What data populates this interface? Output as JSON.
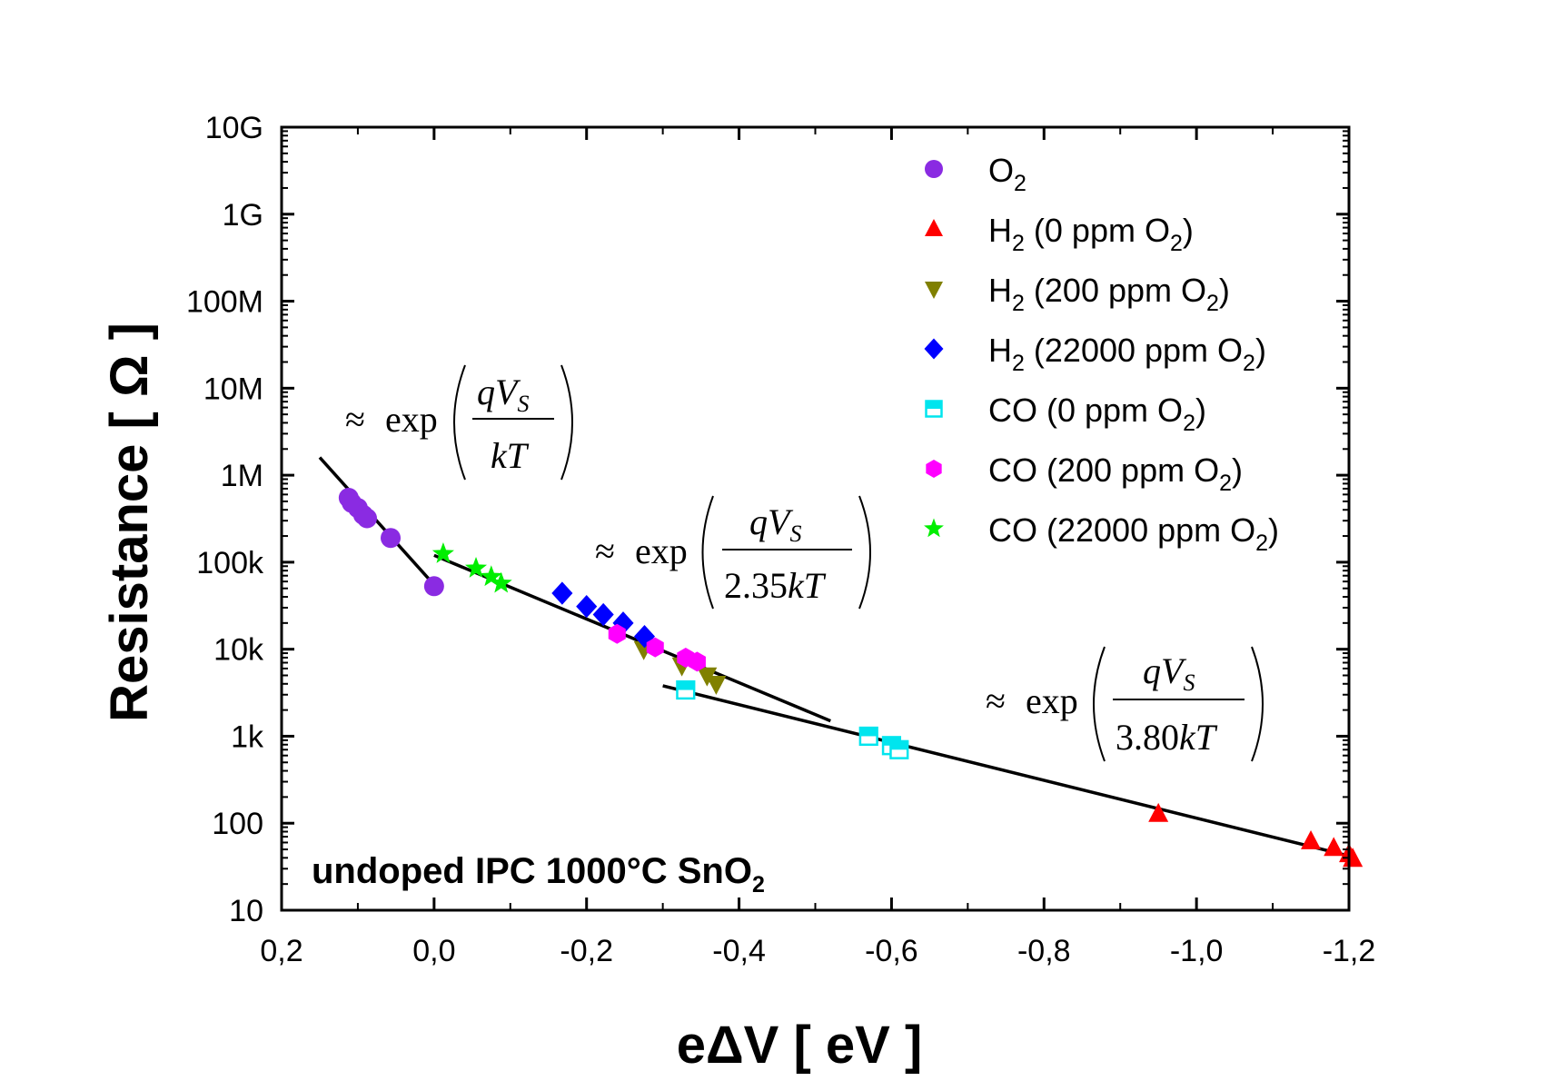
{
  "chart_data": {
    "type": "scatter",
    "title": "",
    "xlabel": "eΔV [ eV ]",
    "ylabel": "Resistance [ Ω ]",
    "x_reversed": true,
    "xlim": [
      0.2,
      -1.2
    ],
    "ylim": [
      10,
      10000000000
    ],
    "y_scale": "log",
    "x_ticks": [
      0.2,
      0.0,
      -0.2,
      -0.4,
      -0.6,
      -0.8,
      -1.0,
      -1.2
    ],
    "x_tick_labels": [
      "0,2",
      "0,0",
      "-0,2",
      "-0,4",
      "-0,6",
      "-0,8",
      "-1,0",
      "-1,2"
    ],
    "y_ticks": [
      10,
      100,
      1000,
      10000,
      100000,
      1000000,
      10000000,
      100000000,
      1000000000,
      10000000000
    ],
    "y_tick_labels": [
      "10",
      "100",
      "1k",
      "10k",
      "100k",
      "1M",
      "10M",
      "100M",
      "1G",
      "10G"
    ],
    "legend_position": "top-right",
    "series": [
      {
        "name_main": "O",
        "name_sub": "2",
        "name_rest": "",
        "name_sub2": "",
        "name_end": "",
        "marker": "circle",
        "color": "#8a2be2",
        "points": [
          [
            0.112,
            550000
          ],
          [
            0.108,
            480000
          ],
          [
            0.1,
            420000
          ],
          [
            0.093,
            350000
          ],
          [
            0.088,
            320000
          ],
          [
            0.057,
            190000
          ],
          [
            0.0,
            53000
          ]
        ]
      },
      {
        "name_main": "H",
        "name_sub": "2",
        "name_rest": " (0 ppm O",
        "name_sub2": "2",
        "name_end": ")",
        "marker": "triangle-up",
        "color": "#ff0000",
        "points": [
          [
            -0.95,
            128
          ],
          [
            -1.15,
            62
          ],
          [
            -1.18,
            52
          ],
          [
            -1.2,
            44
          ],
          [
            -1.205,
            39
          ]
        ]
      },
      {
        "name_main": "H",
        "name_sub": "2",
        "name_rest": " (200 ppm O",
        "name_sub2": "2",
        "name_end": ")",
        "marker": "triangle-down",
        "color": "#808000",
        "points": [
          [
            -0.275,
            10000
          ],
          [
            -0.325,
            6500
          ],
          [
            -0.358,
            5000
          ],
          [
            -0.37,
            4000
          ]
        ]
      },
      {
        "name_main": "H",
        "name_sub": "2",
        "name_rest": " (22000 ppm O",
        "name_sub2": "2",
        "name_end": ")",
        "marker": "diamond",
        "color": "#0000ff",
        "points": [
          [
            -0.168,
            44000
          ],
          [
            -0.2,
            31000
          ],
          [
            -0.222,
            25000
          ],
          [
            -0.248,
            20000
          ],
          [
            -0.276,
            14000
          ]
        ]
      },
      {
        "name_main": "CO",
        "name_sub": "",
        "name_rest": " (0 ppm O",
        "name_sub2": "2",
        "name_end": ")",
        "marker": "square-half",
        "color": "#00e5ee",
        "points": [
          [
            -0.33,
            3400
          ],
          [
            -0.57,
            1000
          ],
          [
            -0.6,
            780
          ],
          [
            -0.61,
            700
          ]
        ]
      },
      {
        "name_main": "CO",
        "name_sub": "",
        "name_rest": " (200 ppm O",
        "name_sub2": "2",
        "name_end": ")",
        "marker": "hexagon",
        "color": "#ff00ff",
        "points": [
          [
            -0.24,
            15000
          ],
          [
            -0.29,
            10500
          ],
          [
            -0.33,
            8000
          ],
          [
            -0.345,
            7200
          ]
        ]
      },
      {
        "name_main": "CO",
        "name_sub": "",
        "name_rest": " (22000 ppm O",
        "name_sub2": "2",
        "name_end": ")",
        "marker": "star",
        "color": "#00ee00",
        "points": [
          [
            -0.012,
            125000
          ],
          [
            -0.055,
            85000
          ],
          [
            -0.075,
            68000
          ],
          [
            -0.088,
            57000
          ]
        ]
      }
    ],
    "fit_lines": [
      {
        "from": [
          0.15,
          1600000
        ],
        "to": [
          0.0,
          55000
        ]
      },
      {
        "from": [
          0.0,
          120000
        ],
        "to": [
          -0.52,
          1500
        ]
      },
      {
        "from": [
          -0.3,
          3800
        ],
        "to": [
          -1.21,
          40
        ]
      }
    ],
    "formulas": [
      {
        "approx": "≈",
        "fn": "exp",
        "numerator": "qV",
        "numerator_sub": "S",
        "denominator": "kT"
      },
      {
        "approx": "≈",
        "fn": "exp",
        "numerator": "qV",
        "numerator_sub": "S",
        "denominator_num": "2.35",
        "denominator": "kT"
      },
      {
        "approx": "≈",
        "fn": "exp",
        "numerator": "qV",
        "numerator_sub": "S",
        "denominator_num": "3.80",
        "denominator": "kT"
      }
    ],
    "annotation": {
      "text": "undoped IPC 1000°C SnO",
      "sub": "2"
    }
  }
}
